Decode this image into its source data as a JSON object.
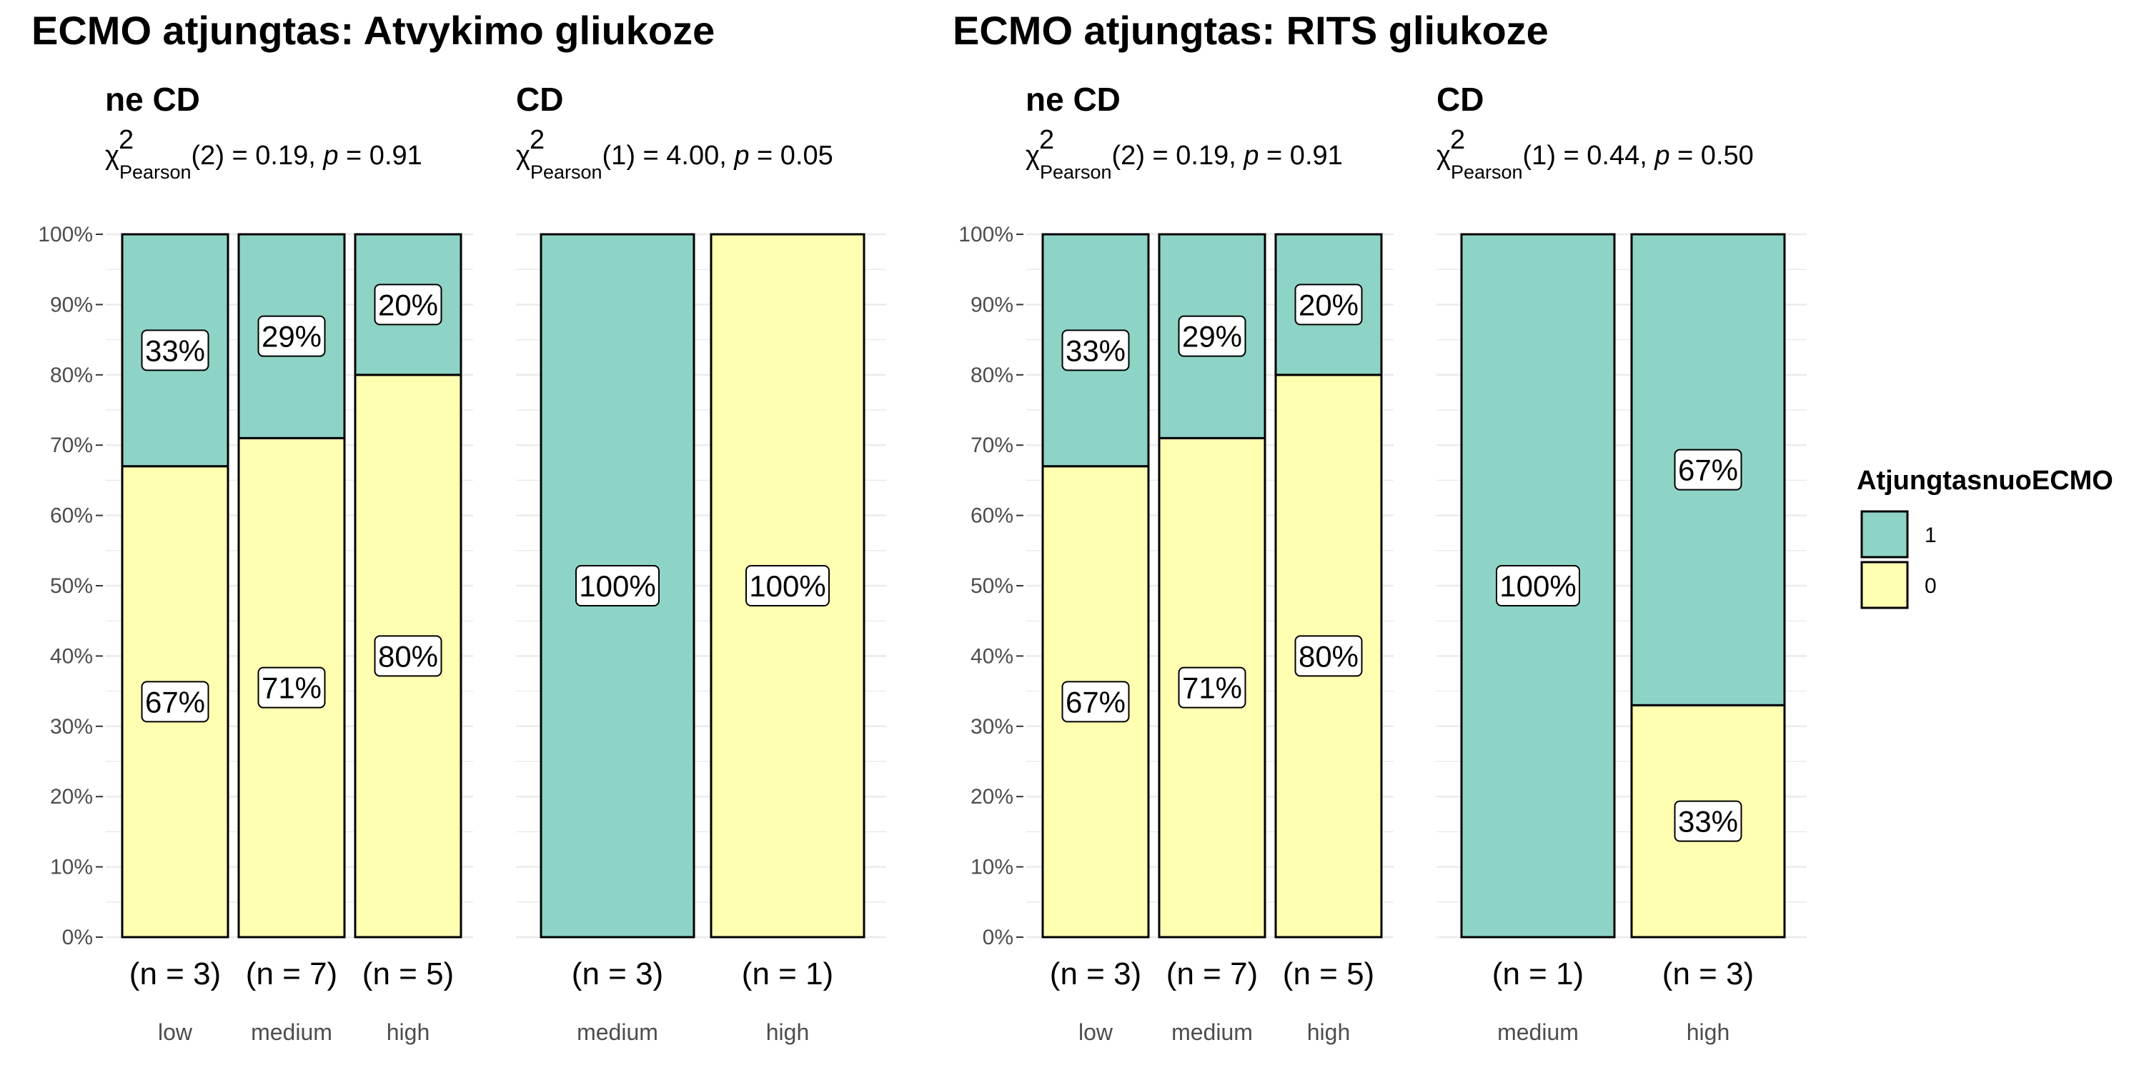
{
  "colors": {
    "c1": "#8ED4C6",
    "c0": "#FFFFB2",
    "grid": "#ebebeb",
    "stroke": "#000000"
  },
  "legend": {
    "title": "AtjungtasnuoECMO",
    "items": [
      {
        "label": "1",
        "color": "#8ED4C6"
      },
      {
        "label": "0",
        "color": "#FFFFB2"
      }
    ]
  },
  "chart_data": [
    {
      "type": "bar",
      "stacked": true,
      "title": "ECMO atjungtas: Atvykimo gliukoze",
      "ylim": [
        0,
        100
      ],
      "yticks": [
        "0%",
        "10%",
        "20%",
        "30%",
        "40%",
        "50%",
        "60%",
        "70%",
        "80%",
        "90%",
        "100%"
      ],
      "panels": [
        {
          "subtitle": "ne CD",
          "stat": {
            "df": "(2) = 0.19, ",
            "p": " = 0.91"
          },
          "categories": [
            "low",
            "medium",
            "high"
          ],
          "counts": [
            "(n = 3)",
            "(n = 7)",
            "(n = 5)"
          ],
          "series": [
            {
              "name": "0",
              "values": [
                67,
                71,
                80
              ],
              "labels": [
                "67%",
                "71%",
                "80%"
              ]
            },
            {
              "name": "1",
              "values": [
                33,
                29,
                20
              ],
              "labels": [
                "33%",
                "29%",
                "20%"
              ]
            }
          ]
        },
        {
          "subtitle": "CD",
          "stat": {
            "df": "(1) = 4.00, ",
            "p": " = 0.05"
          },
          "categories": [
            "medium",
            "high"
          ],
          "counts": [
            "(n = 3)",
            "(n = 1)"
          ],
          "series": [
            {
              "name": "0",
              "values": [
                0,
                100
              ],
              "labels": [
                "",
                "100%"
              ]
            },
            {
              "name": "1",
              "values": [
                100,
                0
              ],
              "labels": [
                "100%",
                ""
              ]
            }
          ]
        }
      ]
    },
    {
      "type": "bar",
      "stacked": true,
      "title": "ECMO atjungtas: RITS gliukoze",
      "ylim": [
        0,
        100
      ],
      "yticks": [
        "0%",
        "10%",
        "20%",
        "30%",
        "40%",
        "50%",
        "60%",
        "70%",
        "80%",
        "90%",
        "100%"
      ],
      "panels": [
        {
          "subtitle": "ne CD",
          "stat": {
            "df": "(2) = 0.19, ",
            "p": " = 0.91"
          },
          "categories": [
            "low",
            "medium",
            "high"
          ],
          "counts": [
            "(n = 3)",
            "(n = 7)",
            "(n = 5)"
          ],
          "series": [
            {
              "name": "0",
              "values": [
                67,
                71,
                80
              ],
              "labels": [
                "67%",
                "71%",
                "80%"
              ]
            },
            {
              "name": "1",
              "values": [
                33,
                29,
                20
              ],
              "labels": [
                "33%",
                "29%",
                "20%"
              ]
            }
          ]
        },
        {
          "subtitle": "CD",
          "stat": {
            "df": "(1) = 0.44, ",
            "p": " = 0.50"
          },
          "categories": [
            "medium",
            "high"
          ],
          "counts": [
            "(n = 1)",
            "(n = 3)"
          ],
          "series": [
            {
              "name": "0",
              "values": [
                0,
                33
              ],
              "labels": [
                "",
                "33%"
              ]
            },
            {
              "name": "1",
              "values": [
                100,
                67
              ],
              "labels": [
                "100%",
                "67%"
              ]
            }
          ]
        }
      ]
    }
  ]
}
